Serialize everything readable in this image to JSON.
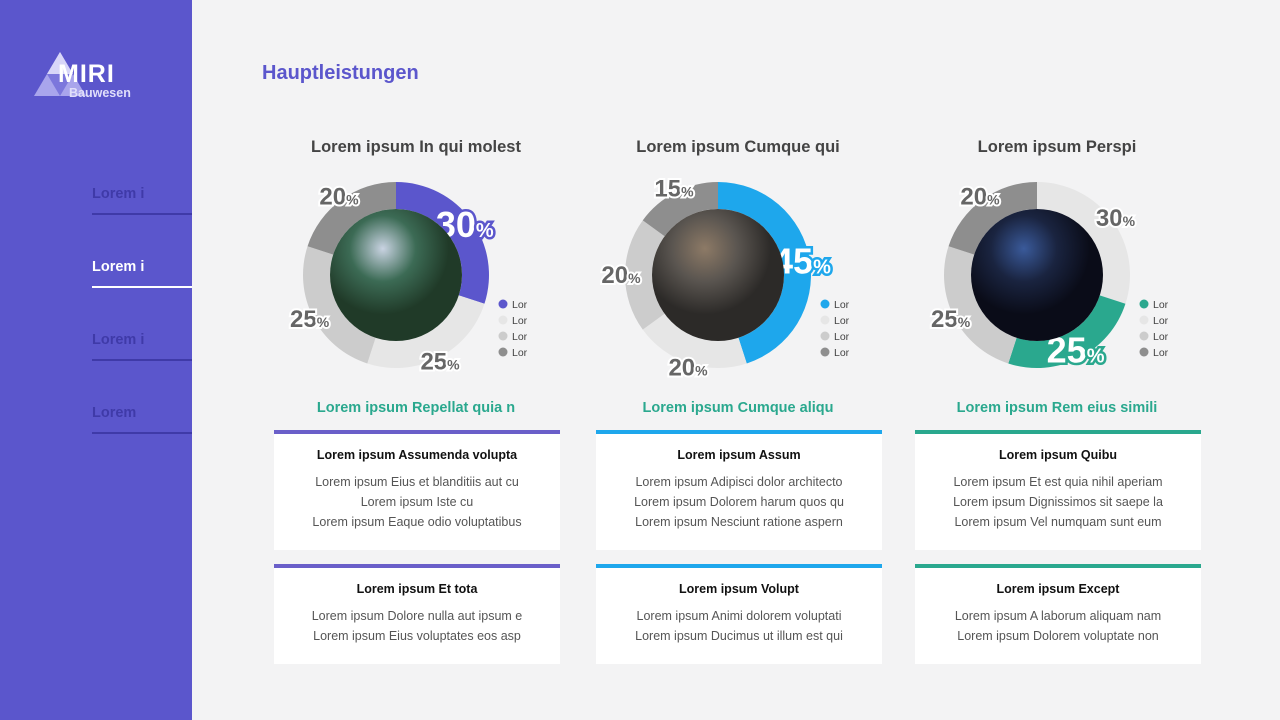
{
  "logo": {
    "name": "MIRI",
    "sub": "Bauwesen"
  },
  "nav": [
    {
      "label": "Lorem i",
      "active": false
    },
    {
      "label": "Lorem i",
      "active": true
    },
    {
      "label": "Lorem i",
      "active": false
    },
    {
      "label": "Lorem",
      "active": false
    }
  ],
  "page_title": "Hauptleistungen",
  "colors": {
    "light": "#e6e6e6",
    "medium": "#cccccc",
    "dark": "#8e8e8e",
    "purple": "#5b56cc",
    "blue": "#1ea7ec",
    "teal": "#2aa88e"
  },
  "chart_data": [
    {
      "type": "pie",
      "title": "Lorem ipsum In qui molest",
      "accent": "#5b56cc",
      "image": "office-tower-photo",
      "slices": [
        {
          "value": 30,
          "color": "accent"
        },
        {
          "value": 25,
          "color": "light"
        },
        {
          "value": 25,
          "color": "medium"
        },
        {
          "value": 20,
          "color": "dark"
        }
      ],
      "legend": [
        "Lor",
        "Lor",
        "Lor",
        "Lor"
      ],
      "legend_colors": [
        "accent",
        "light",
        "medium",
        "dark"
      ]
    },
    {
      "type": "pie",
      "title": "Lorem ipsum Cumque qui",
      "accent": "#1ea7ec",
      "image": "factory-photo",
      "slices": [
        {
          "value": 45,
          "color": "accent"
        },
        {
          "value": 20,
          "color": "light"
        },
        {
          "value": 20,
          "color": "medium"
        },
        {
          "value": 15,
          "color": "dark"
        }
      ],
      "legend": [
        "Lor",
        "Lor",
        "Lor",
        "Lor"
      ],
      "legend_colors": [
        "accent",
        "light",
        "medium",
        "dark"
      ]
    },
    {
      "type": "pie",
      "title": "Lorem ipsum Perspi",
      "accent": "#2aa88e",
      "image": "modern-architecture-photo",
      "slices": [
        {
          "value": 30,
          "color": "light"
        },
        {
          "value": 25,
          "color": "accent"
        },
        {
          "value": 25,
          "color": "medium"
        },
        {
          "value": 20,
          "color": "dark"
        }
      ],
      "legend": [
        "Lor",
        "Lor",
        "Lor",
        "Lor"
      ],
      "legend_colors": [
        "accent",
        "light",
        "medium",
        "dark"
      ]
    }
  ],
  "columns": [
    {
      "subtitle": "Lorem ipsum Repellat quia n",
      "border": "#6a5fc9",
      "cards": [
        {
          "title": "Lorem ipsum Assumenda volupta",
          "lines": [
            "Lorem ipsum Eius et blanditiis aut cu",
            "Lorem ipsum Iste cu",
            "Lorem ipsum Eaque odio voluptatibus"
          ]
        },
        {
          "title": "Lorem ipsum Et tota",
          "lines": [
            "Lorem ipsum Dolore nulla aut ipsum e",
            "Lorem ipsum Eius voluptates eos asp"
          ]
        }
      ]
    },
    {
      "subtitle": "Lorem ipsum Cumque aliqu",
      "border": "#1ea7ec",
      "cards": [
        {
          "title": "Lorem ipsum Assum",
          "lines": [
            "Lorem ipsum Adipisci dolor architecto",
            "Lorem ipsum Dolorem harum quos qu",
            "Lorem ipsum Nesciunt ratione aspern"
          ]
        },
        {
          "title": "Lorem ipsum Volupt",
          "lines": [
            "Lorem ipsum Animi dolorem voluptati",
            "Lorem ipsum Ducimus ut illum est qui"
          ]
        }
      ]
    },
    {
      "subtitle": "Lorem ipsum Rem eius simili",
      "border": "#2aa88e",
      "cards": [
        {
          "title": "Lorem ipsum Quibu",
          "lines": [
            "Lorem ipsum Et est quia nihil aperiam",
            "Lorem ipsum Dignissimos sit saepe la",
            "Lorem ipsum Vel numquam sunt eum"
          ]
        },
        {
          "title": "Lorem ipsum Except",
          "lines": [
            "Lorem ipsum A laborum aliquam nam",
            "Lorem ipsum Dolorem voluptate non"
          ]
        }
      ]
    }
  ]
}
